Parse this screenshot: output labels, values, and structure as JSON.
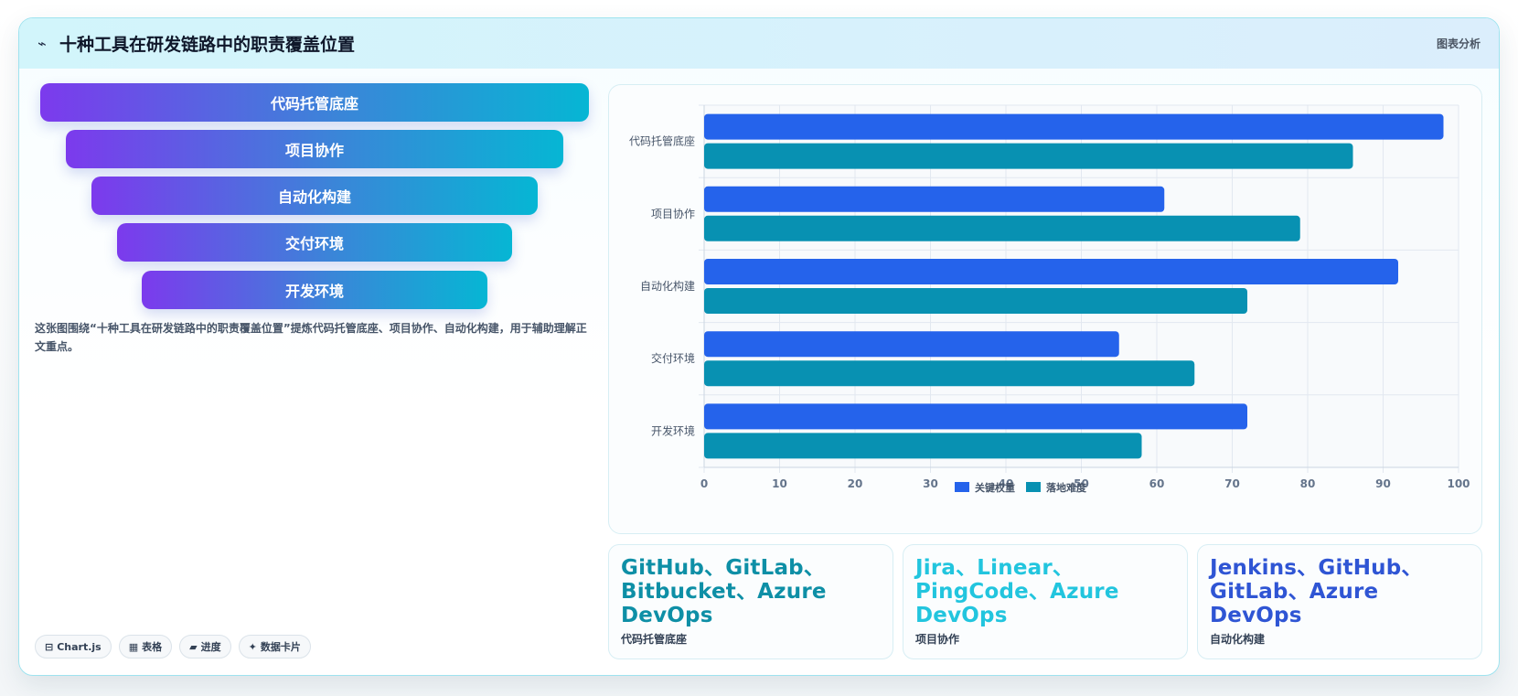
{
  "header": {
    "icon": "trend-icon",
    "title": "十种工具在研发链路中的职责覆盖位置",
    "tag": "图表分析"
  },
  "funnel": {
    "layers": [
      {
        "label": "代码托管底座"
      },
      {
        "label": "项目协作"
      },
      {
        "label": "自动化构建"
      },
      {
        "label": "交付环境"
      },
      {
        "label": "开发环境"
      }
    ]
  },
  "description": "这张图围绕“十种工具在研发链路中的职责覆盖位置”提炼代码托管底座、项目协作、自动化构建，用于辅助理解正文重点。",
  "badges": [
    {
      "icon": "⊟",
      "label": "Chart.js"
    },
    {
      "icon": "▦",
      "label": "表格"
    },
    {
      "icon": "▰",
      "label": "进度"
    },
    {
      "icon": "✦",
      "label": "数据卡片"
    }
  ],
  "chart_data": {
    "type": "bar",
    "orientation": "horizontal",
    "categories": [
      "代码托管底座",
      "项目协作",
      "自动化构建",
      "交付环境",
      "开发环境"
    ],
    "series": [
      {
        "name": "关键权重",
        "color": "#2563eb",
        "values": [
          98,
          61,
          92,
          55,
          72
        ]
      },
      {
        "name": "落地难度",
        "color": "#0891b2",
        "values": [
          86,
          79,
          72,
          65,
          58
        ]
      }
    ],
    "xlim": [
      0,
      100
    ],
    "xticks": [
      "0",
      "10",
      "20",
      "30",
      "40",
      "50",
      "60",
      "70",
      "80",
      "90",
      "100"
    ],
    "grid": true,
    "legend": "bottom"
  },
  "stats": [
    {
      "value": "GitHub、GitLab、Bitbucket、Azure DevOps",
      "label": "代码托管底座",
      "color": "#0e8fa6"
    },
    {
      "value": "Jira、Linear、PingCode、Azure DevOps",
      "label": "项目协作",
      "color": "#22c5de"
    },
    {
      "value": "Jenkins、GitHub、GitLab、Azure DevOps",
      "label": "自动化构建",
      "color": "#2f55d4"
    }
  ]
}
